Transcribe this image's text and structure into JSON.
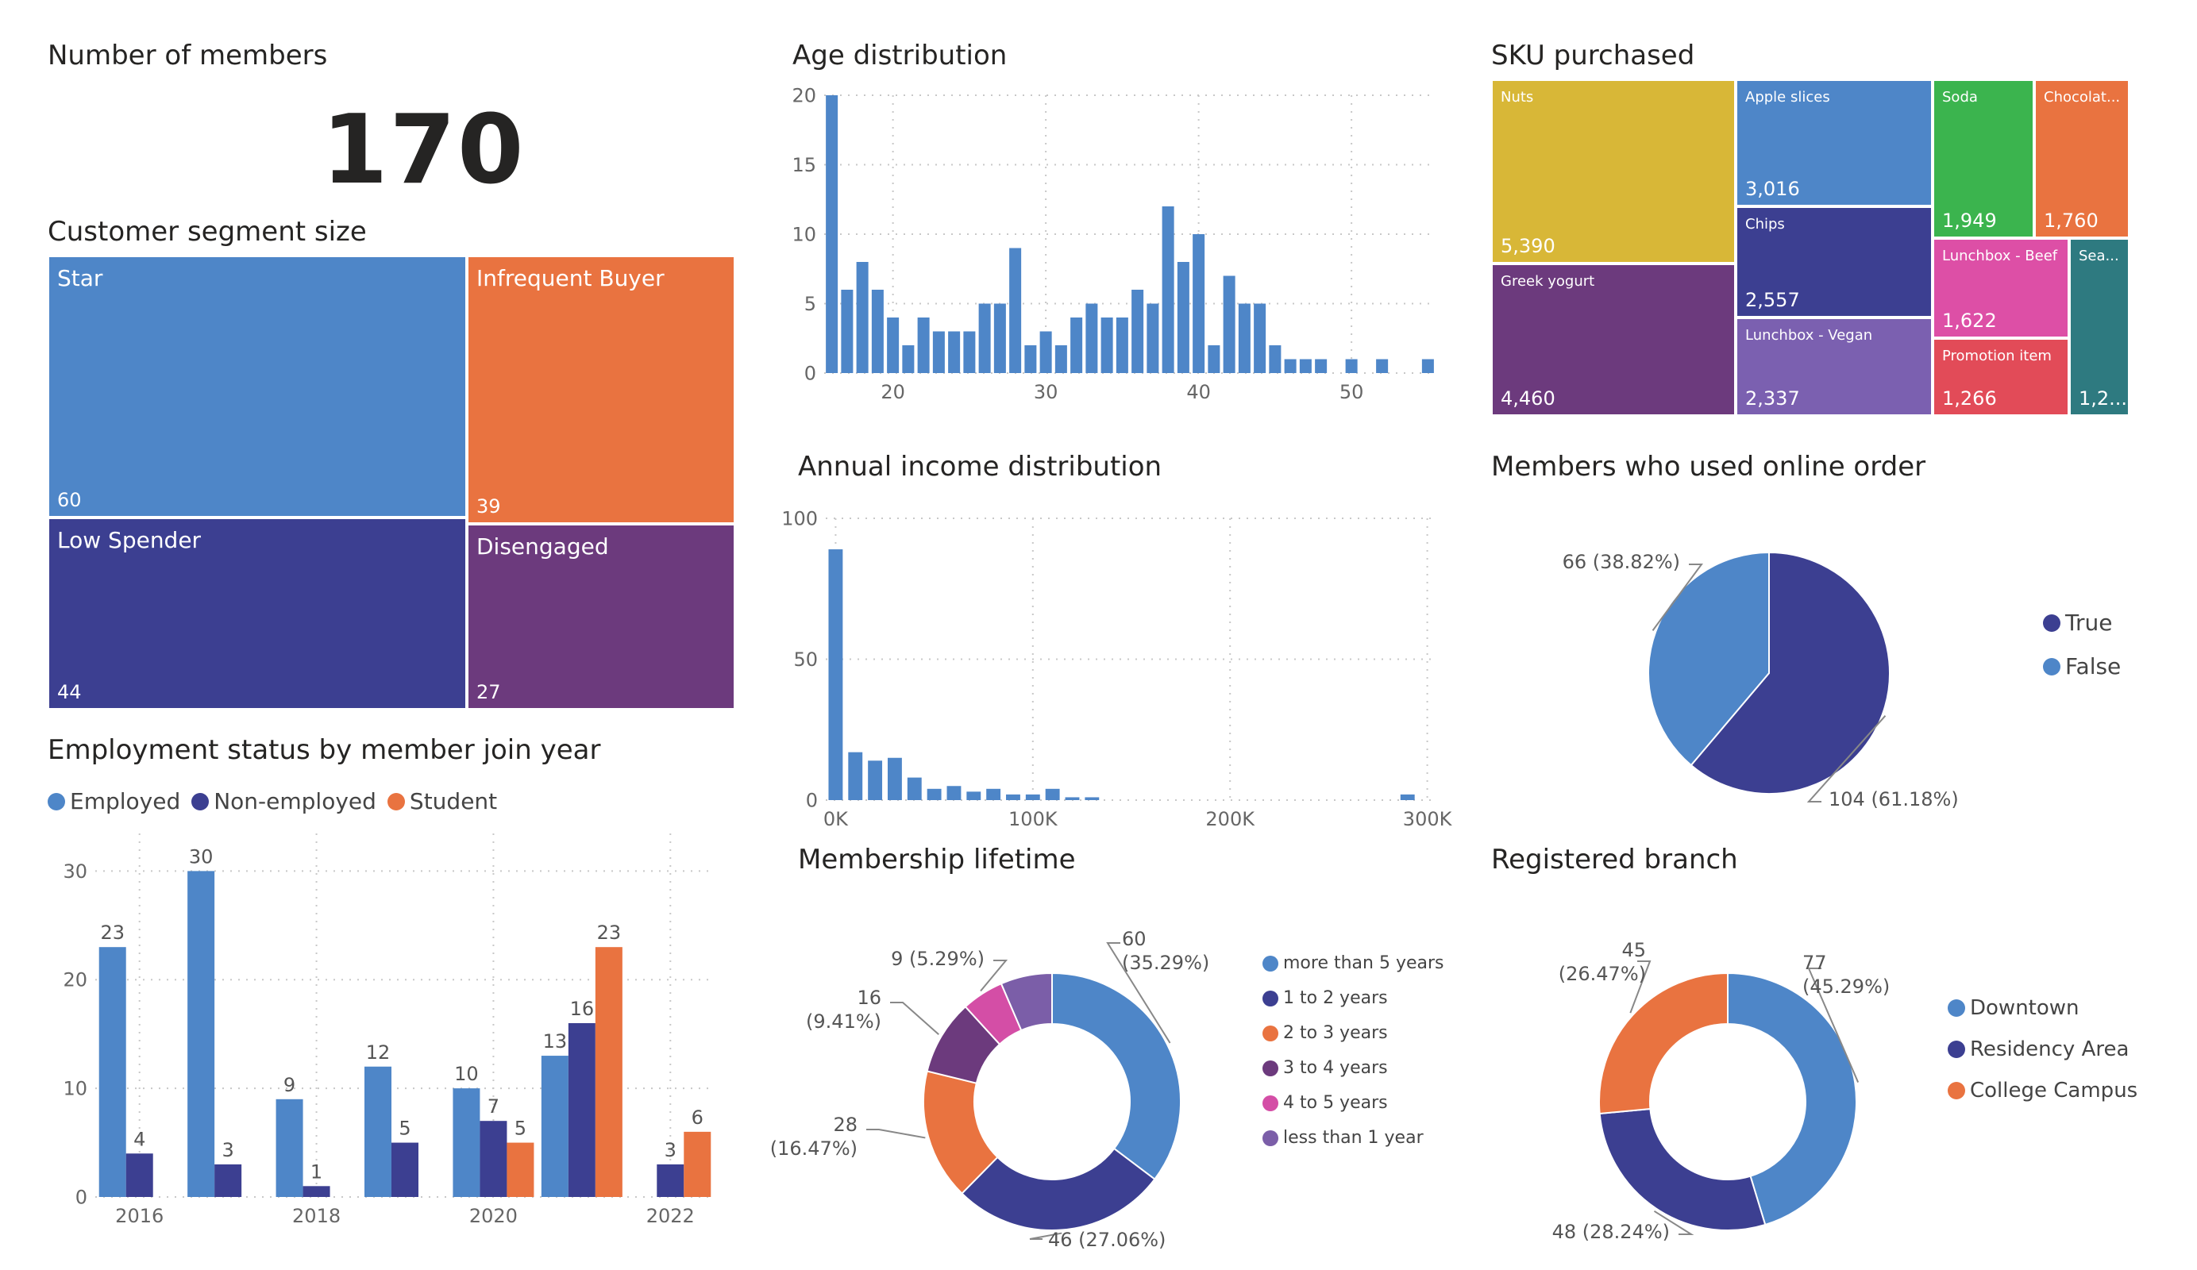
{
  "colors": {
    "blue": "#4e86c8",
    "navy": "#3c3f91",
    "orange": "#e97340",
    "purple": "#6c3a7d",
    "magenta": "#d44ea6",
    "violet": "#7b5ea8",
    "yellow": "#d8b737",
    "lavender": "#7b60b0",
    "green": "#3bb44e",
    "pink": "#dd4fa6",
    "red": "#e24b58",
    "teal": "#2e7a80",
    "grid": "#c8c8c8",
    "axis": "#666666"
  },
  "members": {
    "title": "Number of members",
    "value": "170"
  },
  "segment": {
    "title": "Customer segment size",
    "tiles": [
      {
        "label": "Star",
        "value": "60",
        "color": "#4e86c8"
      },
      {
        "label": "Infrequent Buyer",
        "value": "39",
        "color": "#e97340"
      },
      {
        "label": "Low Spender",
        "value": "44",
        "color": "#3c3f91"
      },
      {
        "label": "Disengaged",
        "value": "27",
        "color": "#6c3a7d"
      }
    ]
  },
  "employment": {
    "title": "Employment status by member join year",
    "legend": [
      {
        "name": "Employed",
        "color": "#4e86c8"
      },
      {
        "name": "Non-employed",
        "color": "#3c3f91"
      },
      {
        "name": "Student",
        "color": "#e97340"
      }
    ]
  },
  "age": {
    "title": "Age distribution"
  },
  "income": {
    "title": "Annual income distribution"
  },
  "lifetime": {
    "title": "Membership lifetime",
    "legend": [
      {
        "name": "more than 5 years",
        "color": "#4e86c8"
      },
      {
        "name": "1 to 2 years",
        "color": "#3c3f91"
      },
      {
        "name": "2 to 3 years",
        "color": "#e97340"
      },
      {
        "name": "3 to 4 years",
        "color": "#6c3a7d"
      },
      {
        "name": "4 to 5 years",
        "color": "#d44ea6"
      },
      {
        "name": "less than 1 year",
        "color": "#7b5ea8"
      }
    ]
  },
  "sku": {
    "title": "SKU purchased",
    "tiles": [
      {
        "label": "Nuts",
        "value": "5,390",
        "color": "#d8b737"
      },
      {
        "label": "Greek yogurt",
        "value": "4,460",
        "color": "#6c3a7d"
      },
      {
        "label": "Apple slices",
        "value": "3,016",
        "color": "#4e86c8"
      },
      {
        "label": "Chips",
        "value": "2,557",
        "color": "#3c3f91"
      },
      {
        "label": "Lunchbox - Vegan",
        "value": "2,337",
        "color": "#7b60b0"
      },
      {
        "label": "Soda",
        "value": "1,949",
        "color": "#3bb44e"
      },
      {
        "label": "Chocolat...",
        "value": "1,760",
        "color": "#e97340"
      },
      {
        "label": "Lunchbox - Beef",
        "value": "1,622",
        "color": "#dd4fa6"
      },
      {
        "label": "Promotion item",
        "value": "1,266",
        "color": "#e24b58"
      },
      {
        "label": "Sea...",
        "value": "1,2...",
        "color": "#2e7a80"
      }
    ]
  },
  "online": {
    "title": "Members who used online order",
    "legend": [
      {
        "name": "True",
        "color": "#3c3f91"
      },
      {
        "name": "False",
        "color": "#4e86c8"
      }
    ]
  },
  "branch": {
    "title": "Registered branch",
    "legend": [
      {
        "name": "Downtown",
        "color": "#4e86c8"
      },
      {
        "name": "Residency Area",
        "color": "#3c3f91"
      },
      {
        "name": "College Campus",
        "color": "#e97340"
      }
    ]
  },
  "chart_data": [
    {
      "id": "employment",
      "type": "bar",
      "categories": [
        "2016",
        "2017",
        "2018",
        "2019",
        "2020",
        "2021",
        "2022"
      ],
      "x_tick_labels": [
        "2016",
        "2018",
        "2020",
        "2022"
      ],
      "series": [
        {
          "name": "Employed",
          "values": [
            23,
            30,
            9,
            12,
            10,
            13,
            null
          ]
        },
        {
          "name": "Non-employed",
          "values": [
            4,
            3,
            1,
            5,
            7,
            16,
            3
          ]
        },
        {
          "name": "Student",
          "values": [
            null,
            null,
            null,
            null,
            5,
            23,
            6
          ]
        }
      ],
      "y_ticks": [
        "0",
        "10",
        "20",
        "30"
      ],
      "ylim": [
        0,
        32
      ],
      "grid": true,
      "legend": "top-left"
    },
    {
      "id": "age",
      "type": "bar",
      "x": [
        16,
        17,
        18,
        19,
        20,
        21,
        22,
        23,
        24,
        25,
        26,
        27,
        28,
        29,
        30,
        31,
        32,
        33,
        34,
        35,
        36,
        37,
        38,
        39,
        40,
        41,
        42,
        43,
        44,
        45,
        46,
        47,
        48,
        49,
        50,
        51,
        52,
        53,
        54,
        55
      ],
      "values": [
        20,
        6,
        8,
        6,
        4,
        2,
        4,
        3,
        3,
        3,
        5,
        5,
        9,
        2,
        3,
        2,
        4,
        5,
        4,
        4,
        6,
        5,
        12,
        8,
        10,
        2,
        7,
        5,
        5,
        2,
        1,
        1,
        1,
        0,
        1,
        0,
        1,
        0,
        0,
        1
      ],
      "x_ticks": [
        "20",
        "30",
        "40",
        "50"
      ],
      "y_ticks": [
        "0",
        "5",
        "10",
        "15",
        "20"
      ],
      "xlim": [
        15.5,
        55.5
      ],
      "ylim": [
        0,
        20
      ],
      "grid": true
    },
    {
      "id": "income",
      "type": "bar",
      "x": [
        0,
        10000,
        20000,
        30000,
        40000,
        50000,
        60000,
        70000,
        80000,
        90000,
        100000,
        110000,
        120000,
        130000,
        140000,
        150000,
        160000,
        170000,
        180000,
        190000,
        200000,
        210000,
        220000,
        230000,
        240000,
        250000,
        260000,
        270000,
        280000,
        290000
      ],
      "values": [
        89,
        17,
        14,
        15,
        8,
        4,
        5,
        3,
        4,
        2,
        2,
        4,
        1,
        1,
        0,
        0,
        0,
        0,
        0,
        0,
        0,
        0,
        0,
        0,
        0,
        0,
        0,
        0,
        0,
        2
      ],
      "x_ticks": [
        "0K",
        "100K",
        "200K",
        "300K"
      ],
      "y_ticks": [
        "0",
        "50",
        "100"
      ],
      "xlim": [
        -5000,
        305000
      ],
      "ylim": [
        0,
        100
      ],
      "grid": true
    },
    {
      "id": "lifetime",
      "type": "pie",
      "hole": true,
      "labels": [
        "more than 5 years",
        "1 to 2 years",
        "2 to 3 years",
        "3 to 4 years",
        "4 to 5 years",
        "less than 1 year"
      ],
      "values": [
        60,
        46,
        28,
        16,
        9,
        11
      ],
      "data_labels": [
        "60 (35.29%)",
        "46 (27.06%)",
        "28 (16.47%)",
        "16 (9.41%)",
        "9 (5.29%)",
        ""
      ],
      "legend": "right"
    },
    {
      "id": "online",
      "type": "pie",
      "hole": false,
      "labels": [
        "True",
        "False"
      ],
      "values": [
        104,
        66
      ],
      "data_labels": [
        "104 (61.18%)",
        "66 (38.82%)"
      ],
      "legend": "right"
    },
    {
      "id": "branch",
      "type": "pie",
      "hole": true,
      "labels": [
        "Downtown",
        "Residency Area",
        "College Campus"
      ],
      "values": [
        77,
        48,
        45
      ],
      "data_labels": [
        "77 (45.29%)",
        "48 (28.24%)",
        "45 (26.47%)"
      ],
      "legend": "right"
    }
  ]
}
